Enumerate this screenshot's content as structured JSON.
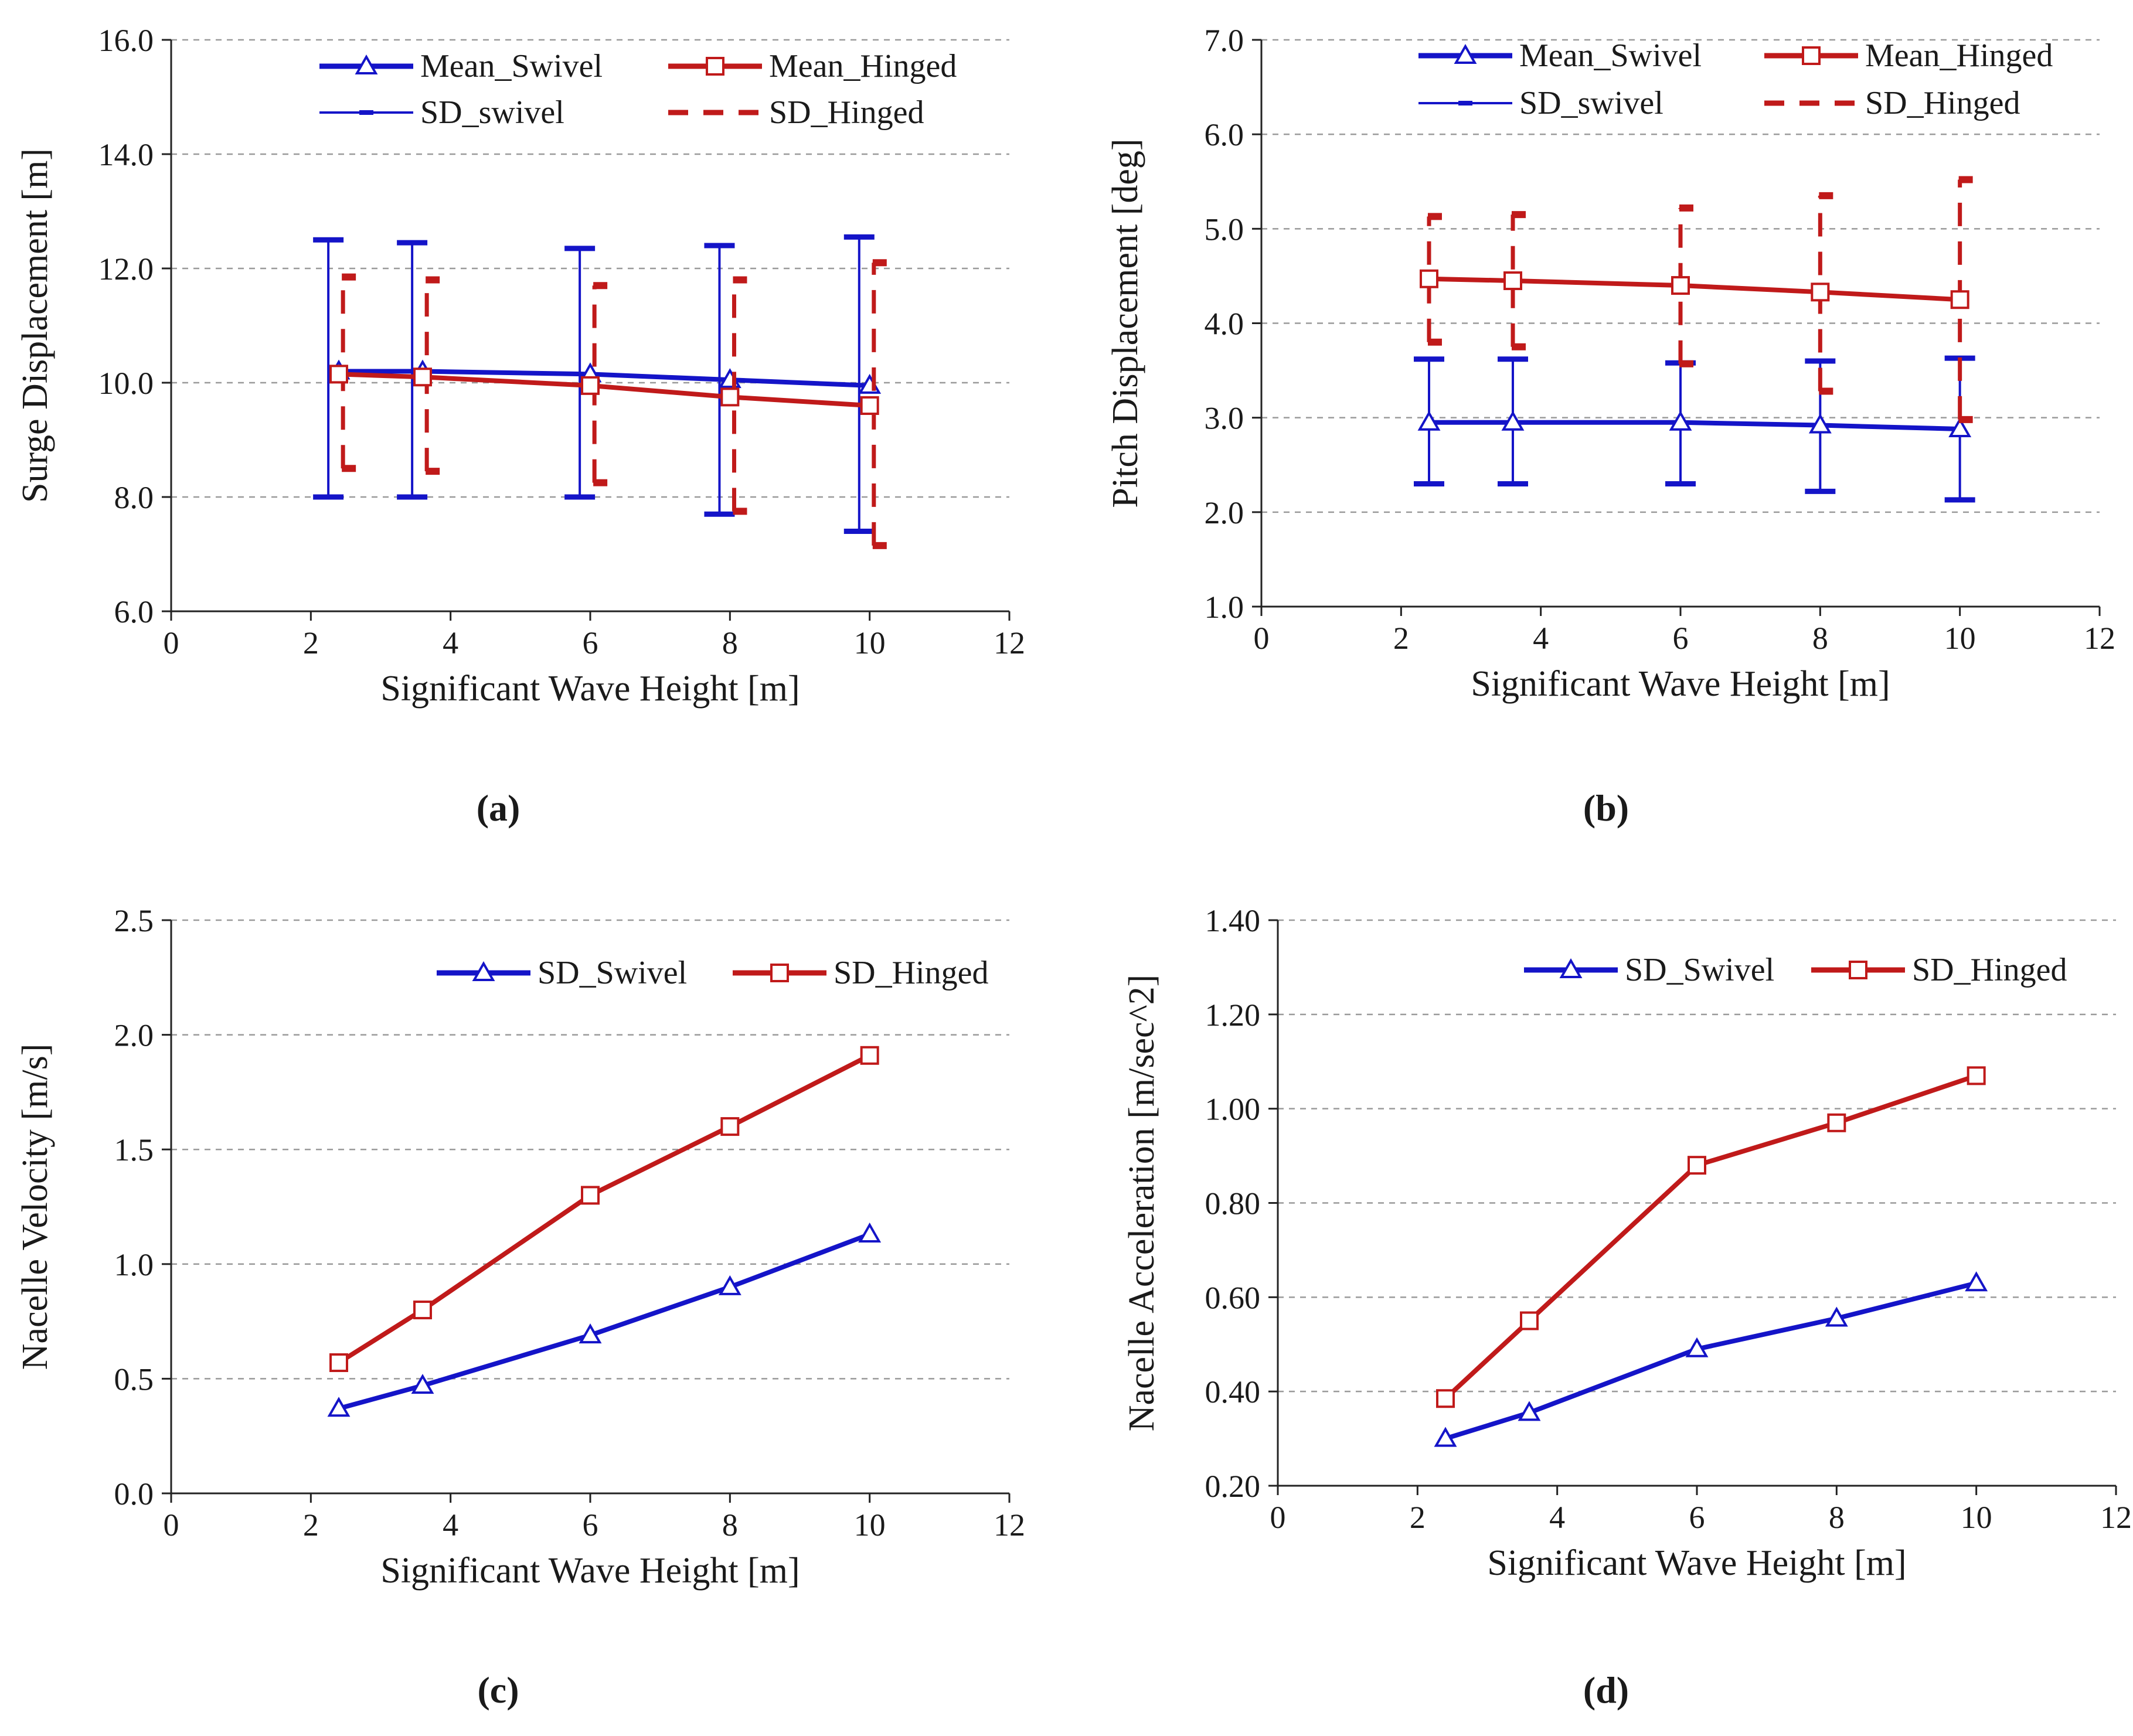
{
  "colors": {
    "swivel": "#1414c8",
    "hinged": "#c01a1a",
    "grid": "#9a9a9a",
    "axis": "#222222"
  },
  "chart_data": [
    {
      "panel_label": "(a)",
      "type": "line",
      "xlabel": "Significant Wave Height  [m]",
      "ylabel": "Surge Displacement  [m]",
      "xlim": [
        0,
        12
      ],
      "ylim": [
        6,
        16
      ],
      "xticks": [
        0,
        2,
        4,
        6,
        8,
        10,
        12
      ],
      "xtick_labels": [
        "0",
        "2",
        "4",
        "6",
        "8",
        "10",
        "12"
      ],
      "yticks": [
        6,
        8,
        10,
        12,
        14,
        16
      ],
      "ytick_labels": [
        "6.0",
        "8.0",
        "10.0",
        "12.0",
        "14.0",
        "16.0"
      ],
      "grid": "horizontal-dashed",
      "legend": [
        "Mean_Swivel",
        "Mean_Hinged",
        "SD_swivel",
        "SD_Hinged"
      ],
      "legend_position": "top",
      "series": [
        {
          "name": "Mean_Swivel",
          "color_key": "swivel",
          "marker": "triangle",
          "x": [
            2.4,
            3.6,
            6,
            8,
            10
          ],
          "y": [
            10.2,
            10.2,
            10.15,
            10.05,
            9.95
          ],
          "err_low": [
            8.0,
            8.0,
            8.0,
            7.7,
            7.4
          ],
          "err_high": [
            12.5,
            12.45,
            12.35,
            12.4,
            12.55
          ],
          "err_offset": -0.15,
          "err_style": "solid"
        },
        {
          "name": "Mean_Hinged",
          "color_key": "hinged",
          "marker": "square",
          "x": [
            2.4,
            3.6,
            6,
            8,
            10
          ],
          "y": [
            10.15,
            10.1,
            9.95,
            9.75,
            9.6
          ],
          "err_low": [
            8.5,
            8.45,
            8.25,
            7.75,
            7.15
          ],
          "err_high": [
            11.85,
            11.8,
            11.7,
            11.8,
            12.1
          ],
          "err_offset": 0.06,
          "err_style": "dashed"
        }
      ]
    },
    {
      "panel_label": "(b)",
      "type": "line",
      "xlabel": "Significant Wave Height  [m]",
      "ylabel": "Pitch Displacement  [deg]",
      "xlim": [
        0,
        12
      ],
      "ylim": [
        1,
        7
      ],
      "xticks": [
        0,
        2,
        4,
        6,
        8,
        10,
        12
      ],
      "xtick_labels": [
        "0",
        "2",
        "4",
        "6",
        "8",
        "10",
        "12"
      ],
      "yticks": [
        1,
        2,
        3,
        4,
        5,
        6,
        7
      ],
      "ytick_labels": [
        "1.0",
        "2.0",
        "3.0",
        "4.0",
        "5.0",
        "6.0",
        "7.0"
      ],
      "grid": "horizontal-dashed",
      "legend": [
        "Mean_Swivel",
        "Mean_Hinged",
        "SD_swivel",
        "SD_Hinged"
      ],
      "legend_position": "top",
      "series": [
        {
          "name": "Mean_Swivel",
          "color_key": "swivel",
          "marker": "triangle",
          "x": [
            2.4,
            3.6,
            6,
            8,
            10
          ],
          "y": [
            2.95,
            2.95,
            2.95,
            2.92,
            2.88
          ],
          "err_low": [
            2.3,
            2.3,
            2.3,
            2.22,
            2.13
          ],
          "err_high": [
            3.62,
            3.62,
            3.58,
            3.6,
            3.63
          ],
          "err_offset": 0,
          "err_style": "solid"
        },
        {
          "name": "Mean_Hinged",
          "color_key": "hinged",
          "marker": "square",
          "x": [
            2.4,
            3.6,
            6,
            8,
            10
          ],
          "y": [
            4.47,
            4.45,
            4.4,
            4.33,
            4.25
          ],
          "err_low": [
            3.8,
            3.75,
            3.57,
            3.28,
            2.98
          ],
          "err_high": [
            5.13,
            5.15,
            5.22,
            5.35,
            5.52
          ],
          "err_offset": 0,
          "err_style": "dashed"
        }
      ]
    },
    {
      "panel_label": "(c)",
      "type": "line",
      "xlabel": "Significant Wave Height  [m]",
      "ylabel": "Nacelle  Velocity  [m/s]",
      "xlim": [
        0,
        12
      ],
      "ylim": [
        0,
        2.5
      ],
      "xticks": [
        0,
        2,
        4,
        6,
        8,
        10,
        12
      ],
      "xtick_labels": [
        "0",
        "2",
        "4",
        "6",
        "8",
        "10",
        "12"
      ],
      "yticks": [
        0,
        0.5,
        1,
        1.5,
        2,
        2.5
      ],
      "ytick_labels": [
        "0.0",
        "0.5",
        "1.0",
        "1.5",
        "2.0",
        "2.5"
      ],
      "grid": "horizontal-dashed",
      "legend": [
        "SD_Swivel",
        "SD_Hinged"
      ],
      "legend_position": "top-right",
      "series": [
        {
          "name": "SD_Swivel",
          "color_key": "swivel",
          "marker": "triangle",
          "x": [
            2.4,
            3.6,
            6,
            8,
            10
          ],
          "y": [
            0.37,
            0.47,
            0.69,
            0.9,
            1.13
          ]
        },
        {
          "name": "SD_Hinged",
          "color_key": "hinged",
          "marker": "square",
          "x": [
            2.4,
            3.6,
            6,
            8,
            10
          ],
          "y": [
            0.57,
            0.8,
            1.3,
            1.6,
            1.91
          ]
        }
      ]
    },
    {
      "panel_label": "(d)",
      "type": "line",
      "xlabel": "Significant Wave Height  [m]",
      "ylabel": "Nacelle  Acceleration  [m/sec^2]",
      "xlim": [
        0,
        12
      ],
      "ylim": [
        0.2,
        1.4
      ],
      "xticks": [
        0,
        2,
        4,
        6,
        8,
        10,
        12
      ],
      "xtick_labels": [
        "0",
        "2",
        "4",
        "6",
        "8",
        "10",
        "12"
      ],
      "yticks": [
        0.2,
        0.4,
        0.6,
        0.8,
        1.0,
        1.2,
        1.4
      ],
      "ytick_labels": [
        "0.20",
        "0.40",
        "0.60",
        "0.80",
        "1.00",
        "1.20",
        "1.40"
      ],
      "grid": "horizontal-dashed",
      "legend": [
        "SD_Swivel",
        "SD_Hinged"
      ],
      "legend_position": "top-right",
      "series": [
        {
          "name": "SD_Swivel",
          "color_key": "swivel",
          "marker": "triangle",
          "x": [
            2.4,
            3.6,
            6,
            8,
            10
          ],
          "y": [
            0.3,
            0.355,
            0.49,
            0.555,
            0.63
          ]
        },
        {
          "name": "SD_Hinged",
          "color_key": "hinged",
          "marker": "square",
          "x": [
            2.4,
            3.6,
            6,
            8,
            10
          ],
          "y": [
            0.385,
            0.55,
            0.88,
            0.97,
            1.07
          ]
        }
      ]
    }
  ]
}
